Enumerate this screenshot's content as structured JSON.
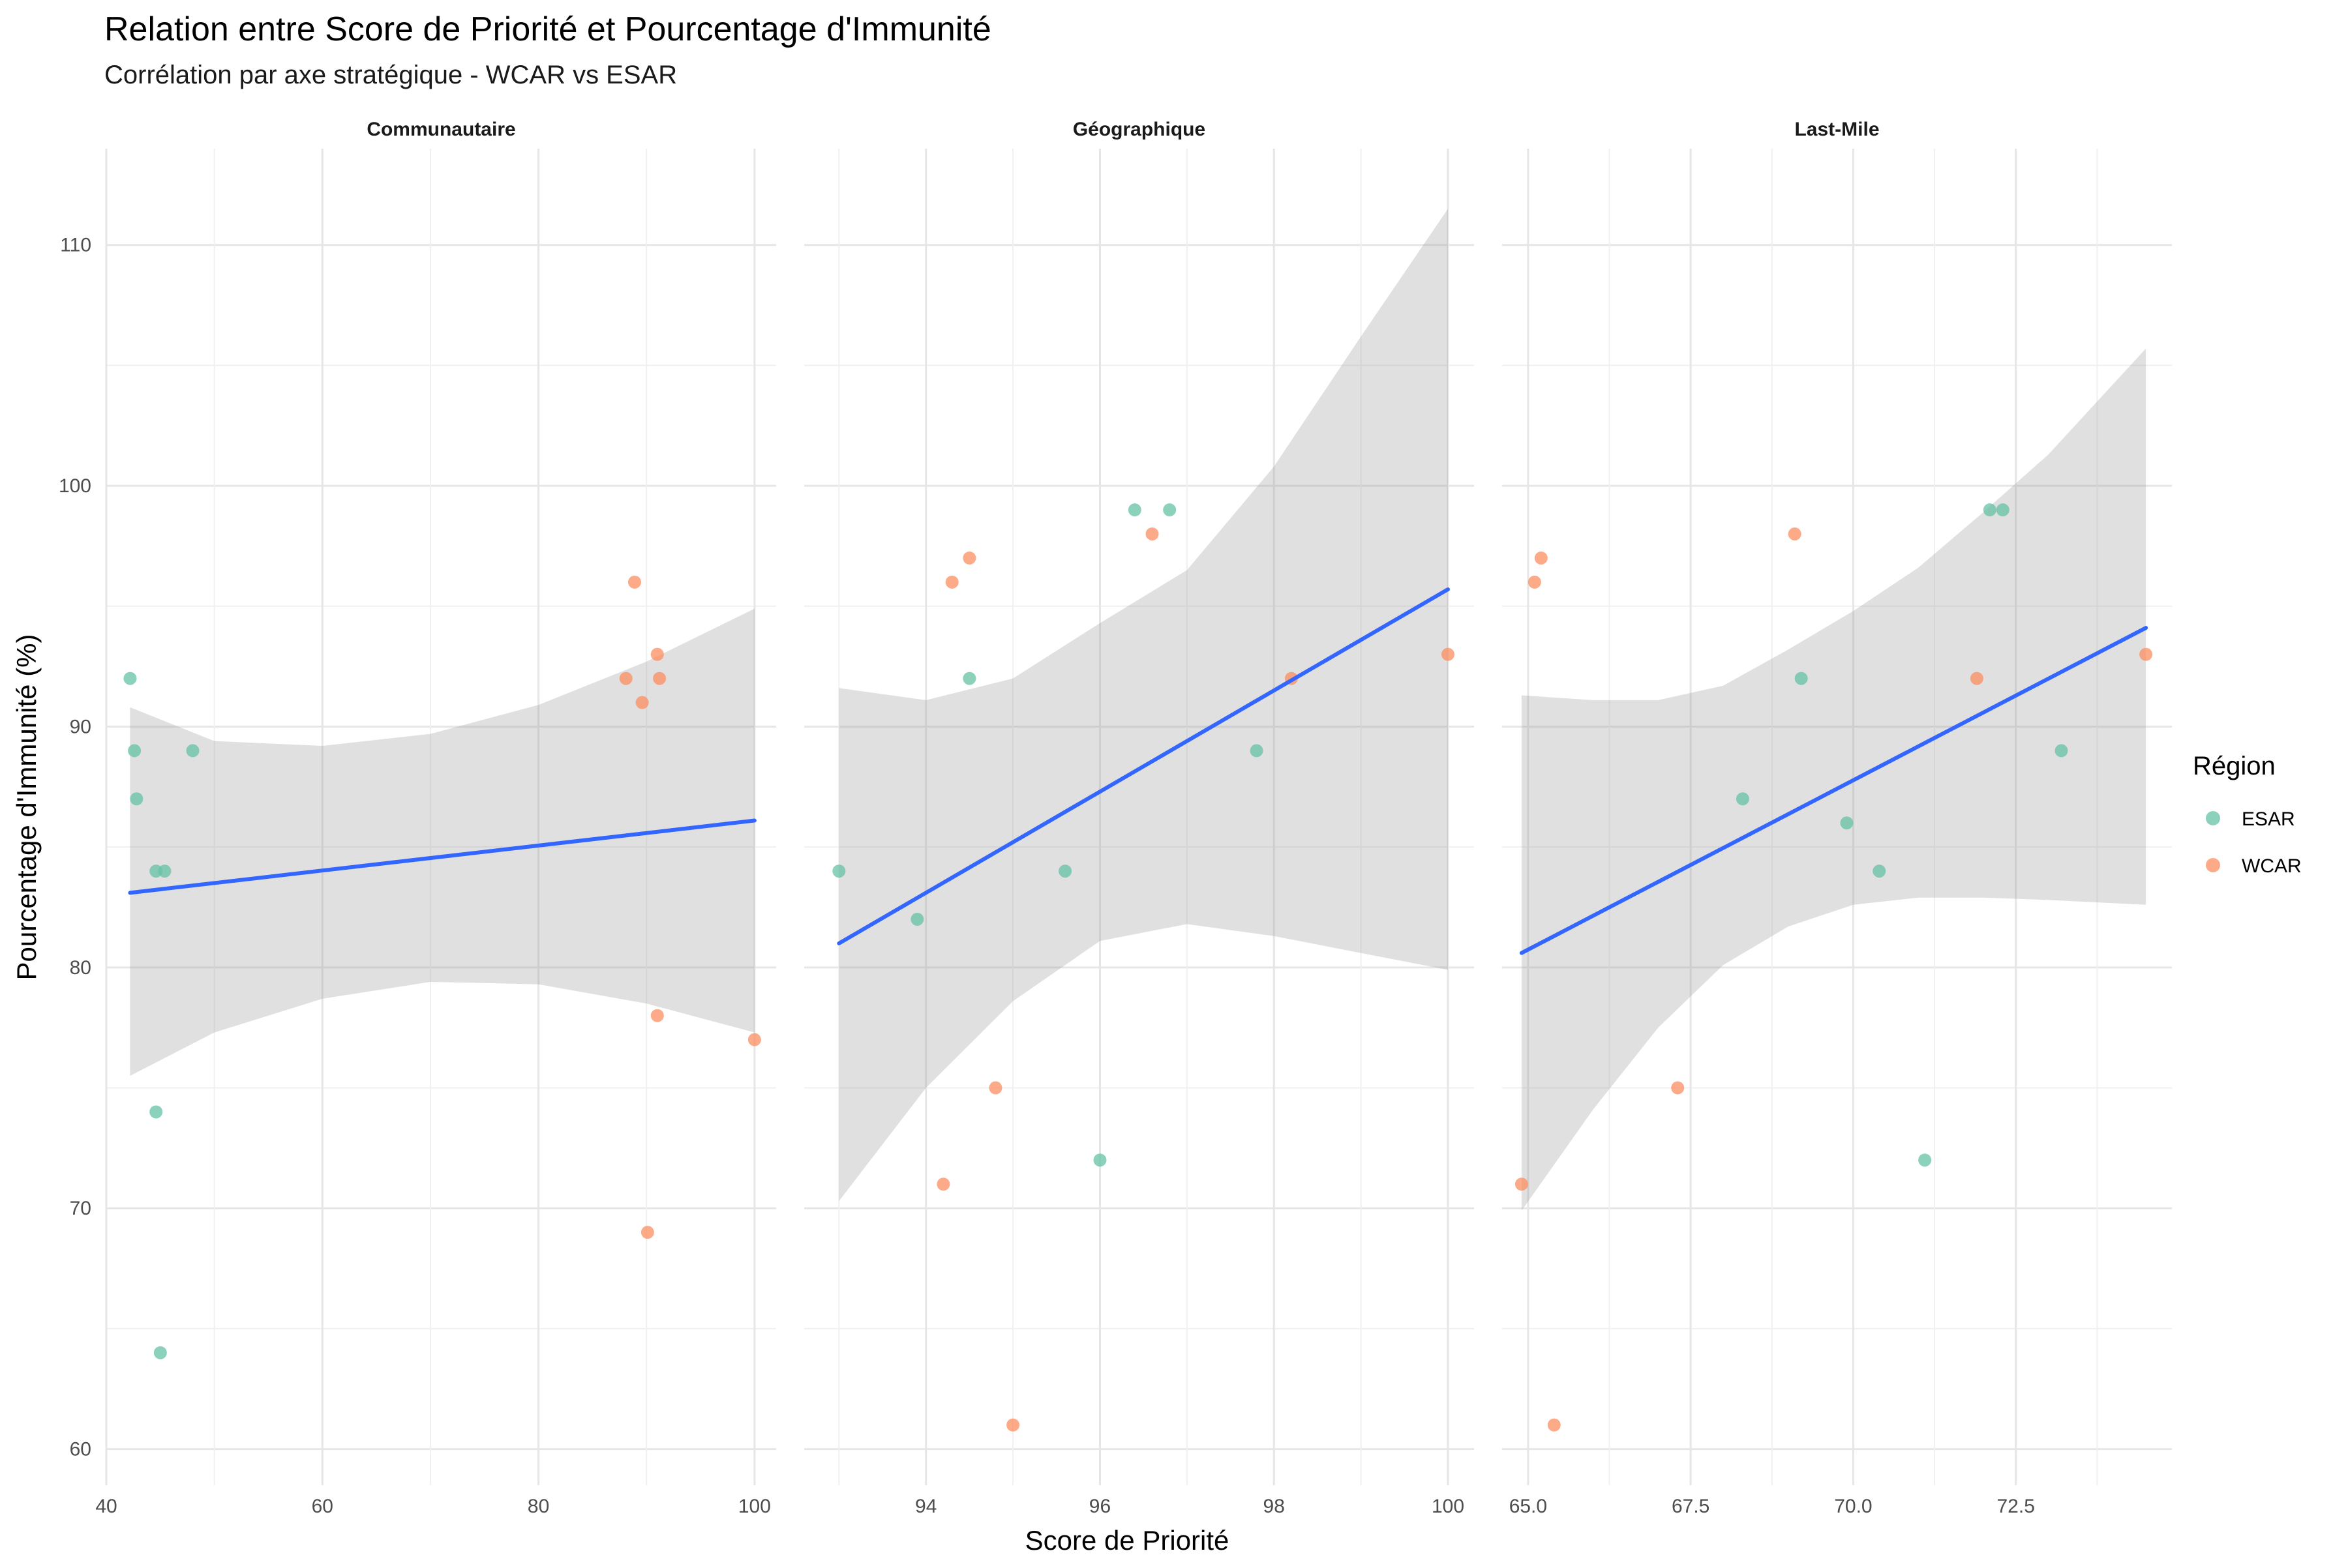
{
  "chart_data": {
    "type": "scatter",
    "title": "Relation entre Score de Priorité et Pourcentage d'Immunité",
    "subtitle": "Corrélation par axe stratégique - WCAR vs ESAR",
    "xlabel": "Score de Priorité",
    "ylabel": "Pourcentage d'Immunité (%)",
    "ylim": [
      58.5,
      114
    ],
    "y_ticks": [
      60,
      70,
      80,
      90,
      100,
      110
    ],
    "grid": true,
    "legend": {
      "title": "Région",
      "position": "right",
      "entries": [
        {
          "name": "ESAR",
          "color": "#66C2A5"
        },
        {
          "name": "WCAR",
          "color": "#FC8D62"
        }
      ]
    },
    "trend_color": "#3366FF",
    "band_color": "#999999",
    "panels": [
      {
        "name": "Communautaire",
        "xlim": [
          40,
          102
        ],
        "x_ticks": [
          40,
          60,
          80,
          100
        ],
        "x_tick_labels": [
          "40",
          "60",
          "80",
          "100"
        ],
        "series": [
          {
            "name": "ESAR",
            "points": [
              [
                42.2,
                92
              ],
              [
                42.6,
                89
              ],
              [
                42.8,
                87
              ],
              [
                44.6,
                84
              ],
              [
                45.4,
                84
              ],
              [
                44.6,
                74
              ],
              [
                48.0,
                89
              ],
              [
                45.0,
                64
              ]
            ]
          },
          {
            "name": "WCAR",
            "points": [
              [
                88.9,
                96
              ],
              [
                88.1,
                92
              ],
              [
                91.0,
                93
              ],
              [
                91.2,
                92
              ],
              [
                89.6,
                91
              ],
              [
                91.0,
                78
              ],
              [
                100.0,
                77
              ],
              [
                90.1,
                69
              ]
            ]
          }
        ],
        "trend": {
          "x": [
            42.2,
            100.0
          ],
          "y": [
            83.1,
            86.1
          ]
        },
        "band": {
          "x": [
            42.2,
            50,
            60,
            70,
            80,
            90,
            100
          ],
          "lower": [
            75.5,
            77.3,
            78.7,
            79.4,
            79.3,
            78.5,
            77.3
          ],
          "upper": [
            90.8,
            89.4,
            89.2,
            89.7,
            90.9,
            92.7,
            94.9
          ]
        }
      },
      {
        "name": "Géographique",
        "xlim": [
          92.6,
          100.3
        ],
        "x_ticks": [
          94,
          96,
          98,
          100
        ],
        "x_tick_labels": [
          "94",
          "96",
          "98",
          "100"
        ],
        "series": [
          {
            "name": "ESAR",
            "points": [
              [
                93.0,
                84
              ],
              [
                93.9,
                82
              ],
              [
                94.5,
                92
              ],
              [
                95.6,
                84
              ],
              [
                96.0,
                72
              ],
              [
                96.4,
                99
              ],
              [
                96.8,
                99
              ],
              [
                97.8,
                89
              ]
            ]
          },
          {
            "name": "WCAR",
            "points": [
              [
                94.3,
                96
              ],
              [
                94.5,
                97
              ],
              [
                94.2,
                71
              ],
              [
                94.8,
                75
              ],
              [
                95.0,
                61
              ],
              [
                96.6,
                98
              ],
              [
                98.2,
                92
              ],
              [
                100.0,
                93
              ]
            ]
          }
        ],
        "trend": {
          "x": [
            93.0,
            100.0
          ],
          "y": [
            81.0,
            95.7
          ]
        },
        "band": {
          "x": [
            93.0,
            94.0,
            95.0,
            96.0,
            97.0,
            98.0,
            99.0,
            100.0
          ],
          "lower": [
            70.3,
            75.0,
            78.6,
            81.1,
            81.8,
            81.3,
            80.6,
            79.9
          ],
          "upper": [
            91.6,
            91.1,
            92.0,
            94.3,
            96.5,
            100.8,
            106.2,
            111.5
          ]
        }
      },
      {
        "name": "Last-Mile",
        "xlim": [
          64.6,
          74.9
        ],
        "x_ticks": [
          65,
          67.5,
          70,
          72.5
        ],
        "x_tick_labels": [
          "65.0",
          "67.5",
          "70.0",
          "72.5"
        ],
        "series": [
          {
            "name": "ESAR",
            "points": [
              [
                68.3,
                87
              ],
              [
                69.2,
                92
              ],
              [
                69.9,
                86
              ],
              [
                70.4,
                84
              ],
              [
                71.1,
                72
              ],
              [
                72.1,
                99
              ],
              [
                72.3,
                99
              ],
              [
                73.2,
                89
              ]
            ]
          },
          {
            "name": "WCAR",
            "points": [
              [
                65.1,
                96
              ],
              [
                65.2,
                97
              ],
              [
                64.9,
                71
              ],
              [
                65.4,
                61
              ],
              [
                67.3,
                75
              ],
              [
                69.1,
                98
              ],
              [
                71.9,
                92
              ],
              [
                74.5,
                93
              ]
            ]
          }
        ],
        "trend": {
          "x": [
            64.9,
            74.5
          ],
          "y": [
            80.6,
            94.1
          ]
        },
        "band": {
          "x": [
            64.9,
            66.0,
            67.0,
            68.0,
            69.0,
            70.0,
            71.0,
            72.0,
            73.0,
            74.5
          ],
          "lower": [
            69.9,
            74.1,
            77.5,
            80.1,
            81.7,
            82.6,
            82.9,
            82.9,
            82.8,
            82.6
          ],
          "upper": [
            91.3,
            91.1,
            91.1,
            91.7,
            93.2,
            94.8,
            96.6,
            98.9,
            101.3,
            105.7
          ]
        }
      }
    ]
  }
}
